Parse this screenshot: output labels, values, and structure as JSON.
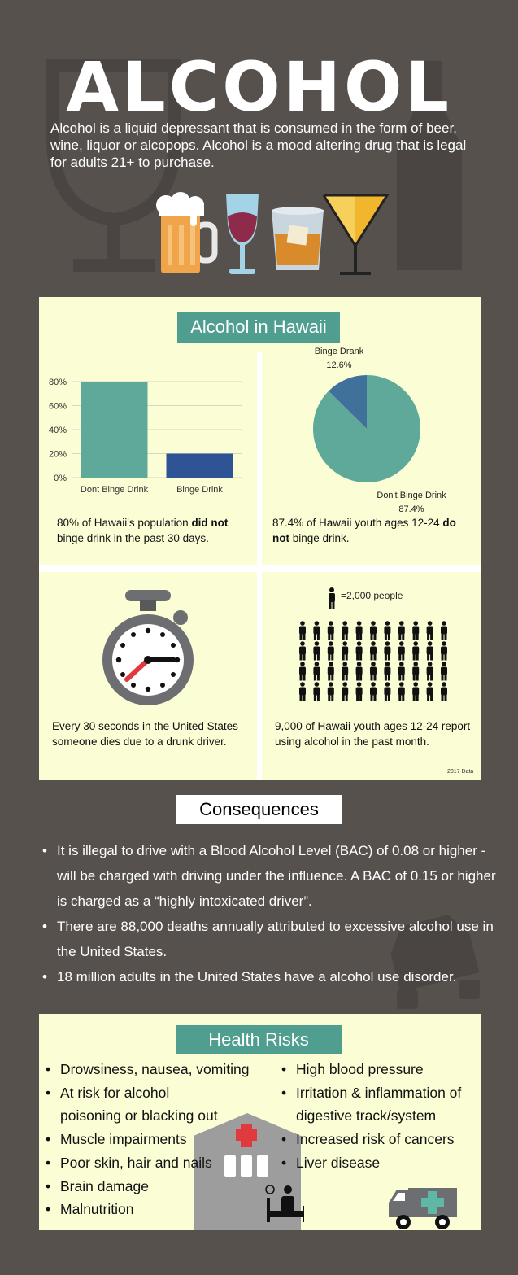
{
  "header": {
    "title": "ALCOHOL",
    "intro": "Alcohol is a liquid depressant that is consumed in the form of beer, wine, liquor or alcopops. Alcohol is a mood altering drug that is legal for adults 21+ to purchase."
  },
  "hawaii": {
    "heading": "Alcohol in Hawaii",
    "bar_caption_pre": "80% of Hawaii's population ",
    "bar_caption_bold": "did not",
    "bar_caption_post": " binge drink in the past 30 days.",
    "pie_caption_pre": "87.4% of Hawaii youth ages 12-24 ",
    "pie_caption_bold1": "do",
    "pie_caption_bold2": "not",
    "pie_caption_post": " binge drink.",
    "stopwatch_caption": "Every 30 seconds in the United States someone dies due to a drunk driver.",
    "people_legend": "=2,000 people",
    "people_caption": "9,000 of Hawaii youth ages 12-24 report using alcohol in the past month.",
    "data_note": "2017 Data"
  },
  "chart_data": [
    {
      "type": "bar",
      "categories": [
        "Dont Binge Drink",
        "Binge Drink"
      ],
      "values": [
        80,
        20
      ],
      "yticks": [
        "0%",
        "20%",
        "40%",
        "60%",
        "80%"
      ],
      "ylim": [
        0,
        80
      ],
      "colors": [
        "#5ea99a",
        "#2e5496"
      ],
      "grid": true
    },
    {
      "type": "pie",
      "slices": [
        {
          "label": "Binge Drank",
          "pct_label": "12.6%",
          "value": 12.6,
          "color": "#3f719a"
        },
        {
          "label": "Don't Binge Drink",
          "pct_label": "87.4%",
          "value": 87.4,
          "color": "#5ea99a"
        }
      ]
    }
  ],
  "people_icon_count": 44,
  "consequences": {
    "heading": "Consequences",
    "items": [
      "It is illegal to drive with a Blood Alcohol Level (BAC) of 0.08 or higher  - will be charged with driving under the influence. A BAC of 0.15 or higher is charged as a “highly intoxicated driver”.",
      "There are 88,000 deaths annually attributed to excessive alcohol use in the United States.",
      "18 million adults in the United States have a alcohol use disorder."
    ]
  },
  "health": {
    "heading": "Health Risks",
    "left_items": [
      "Drowsiness, nausea, vomiting",
      "At risk for alcohol poisoning or blacking out",
      "Muscle impairments",
      "Poor skin, hair and nails",
      "Brain damage",
      "Malnutrition"
    ],
    "right_items": [
      "High blood pressure",
      "Irritation & inflammation of digestive track/system",
      "Increased risk of cancers",
      "Liver disease"
    ]
  },
  "colors": {
    "background": "#57514e",
    "panel": "#fbfdd5",
    "accent_teal": "#4f9e8f",
    "bar_blue": "#2e5496"
  },
  "icons": [
    "wine-glass-icon",
    "bottle-icon",
    "beer-mug-icon",
    "wine-icon",
    "whiskey-glass-icon",
    "martini-icon",
    "stopwatch-icon",
    "person-icon",
    "car-crash-icon",
    "hospital-icon",
    "ambulance-icon"
  ]
}
